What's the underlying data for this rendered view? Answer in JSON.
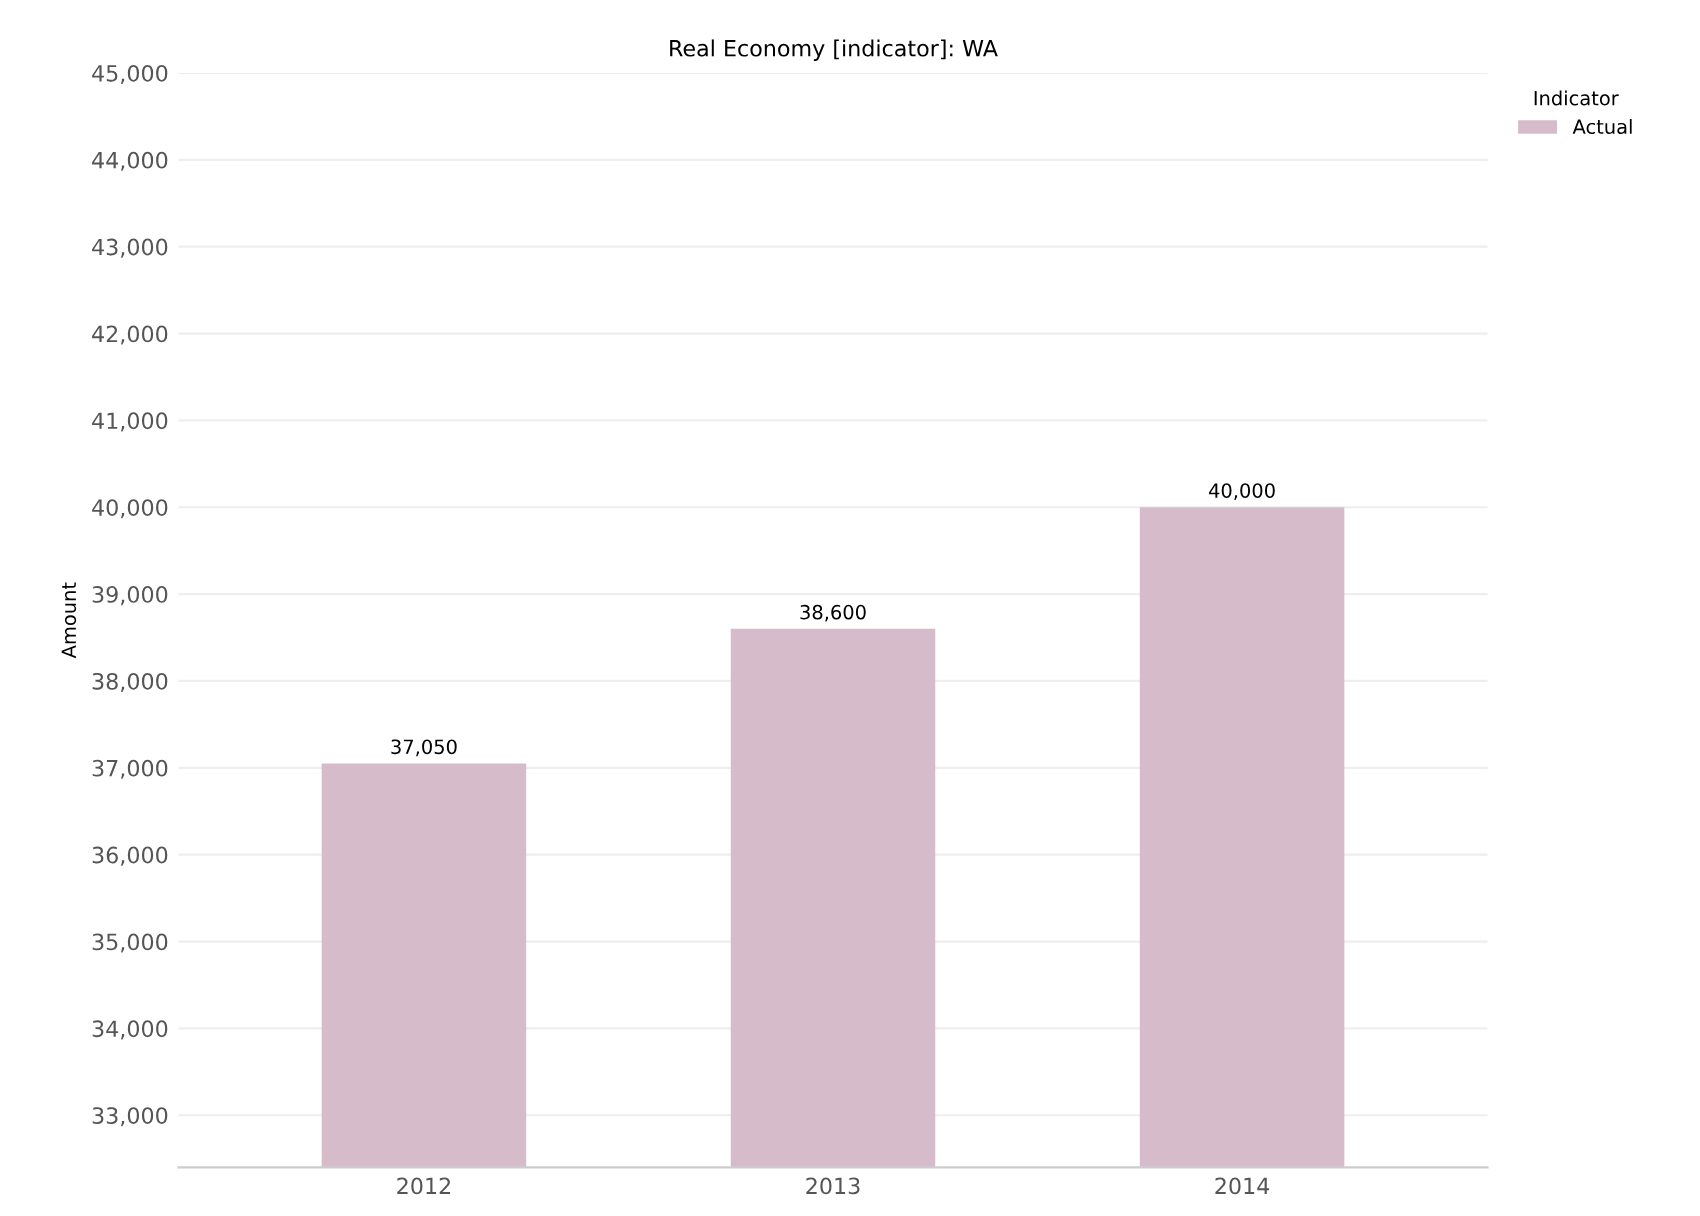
{
  "chart_data": {
    "type": "bar",
    "title": "Real Economy [indicator]: WA",
    "ylabel": "Amount",
    "categories": [
      "2012",
      "2013",
      "2014"
    ],
    "series": [
      {
        "name": "Actual",
        "color": "#d6bccb",
        "values": [
          37050,
          38600,
          40000
        ]
      }
    ],
    "value_labels": [
      "37,050",
      "38,600",
      "40,000"
    ],
    "legend_title": "Indicator",
    "legend": "top right",
    "grid": "y",
    "ylim": [
      32400,
      45000
    ],
    "yticks": [
      {
        "value": 33000,
        "label": "33,000"
      },
      {
        "value": 34000,
        "label": "34,000"
      },
      {
        "value": 35000,
        "label": "35,000"
      },
      {
        "value": 36000,
        "label": "36,000"
      },
      {
        "value": 37000,
        "label": "37,000"
      },
      {
        "value": 38000,
        "label": "38,000"
      },
      {
        "value": 39000,
        "label": "39,000"
      },
      {
        "value": 40000,
        "label": "40,000"
      },
      {
        "value": 41000,
        "label": "41,000"
      },
      {
        "value": 42000,
        "label": "42,000"
      },
      {
        "value": 43000,
        "label": "43,000"
      },
      {
        "value": 44000,
        "label": "44,000"
      },
      {
        "value": 45000,
        "label": "45,000"
      }
    ]
  }
}
